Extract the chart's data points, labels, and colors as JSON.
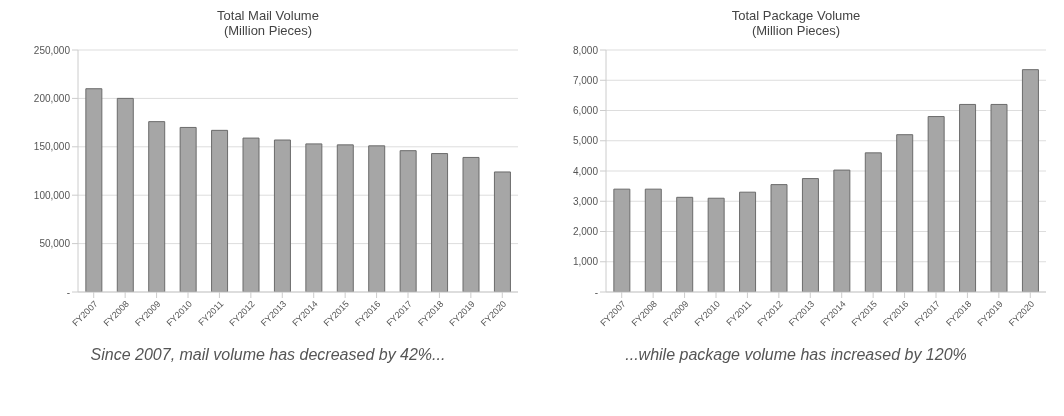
{
  "chart_data": [
    {
      "type": "bar",
      "title": "Total Mail Volume",
      "subtitle": "(Million Pieces)",
      "categories": [
        "FY2007",
        "FY2008",
        "FY2009",
        "FY2010",
        "FY2011",
        "FY2012",
        "FY2013",
        "FY2014",
        "FY2015",
        "FY2016",
        "FY2017",
        "FY2018",
        "FY2019",
        "FY2020"
      ],
      "values": [
        210000,
        200000,
        176000,
        170000,
        167000,
        159000,
        157000,
        153000,
        152000,
        151000,
        146000,
        143000,
        139000,
        124000
      ],
      "color": "#a6a6a6",
      "ylim": [
        0,
        250000
      ],
      "yticks": [
        {
          "value": 0,
          "label": "-"
        },
        {
          "value": 50000,
          "label": "50,000"
        },
        {
          "value": 100000,
          "label": "100,000"
        },
        {
          "value": 150000,
          "label": "150,000"
        },
        {
          "value": 200000,
          "label": "200,000"
        },
        {
          "value": 250000,
          "label": "250,000"
        }
      ],
      "grid": "y",
      "annotations": [
        "Since 2007, mail volume has decreased by 42%..."
      ]
    },
    {
      "type": "bar",
      "title": "Total Package Volume",
      "subtitle": "(Million Pieces)",
      "categories": [
        "FY2007",
        "FY2008",
        "FY2009",
        "FY2010",
        "FY2011",
        "FY2012",
        "FY2013",
        "FY2014",
        "FY2015",
        "FY2016",
        "FY2017",
        "FY2018",
        "FY2019",
        "FY2020"
      ],
      "values": [
        3400,
        3400,
        3130,
        3100,
        3300,
        3550,
        3750,
        4030,
        4600,
        5200,
        5800,
        6200,
        6200,
        7350
      ],
      "color": "#a6a6a6",
      "ylim": [
        0,
        8000
      ],
      "yticks": [
        {
          "value": 0,
          "label": "-"
        },
        {
          "value": 1000,
          "label": "1,000"
        },
        {
          "value": 2000,
          "label": "2,000"
        },
        {
          "value": 3000,
          "label": "3,000"
        },
        {
          "value": 4000,
          "label": "4,000"
        },
        {
          "value": 5000,
          "label": "5,000"
        },
        {
          "value": 6000,
          "label": "6,000"
        },
        {
          "value": 7000,
          "label": "7,000"
        },
        {
          "value": 8000,
          "label": "8,000"
        }
      ],
      "grid": "y",
      "annotations": [
        "...while package volume has increased by 120%"
      ]
    }
  ]
}
